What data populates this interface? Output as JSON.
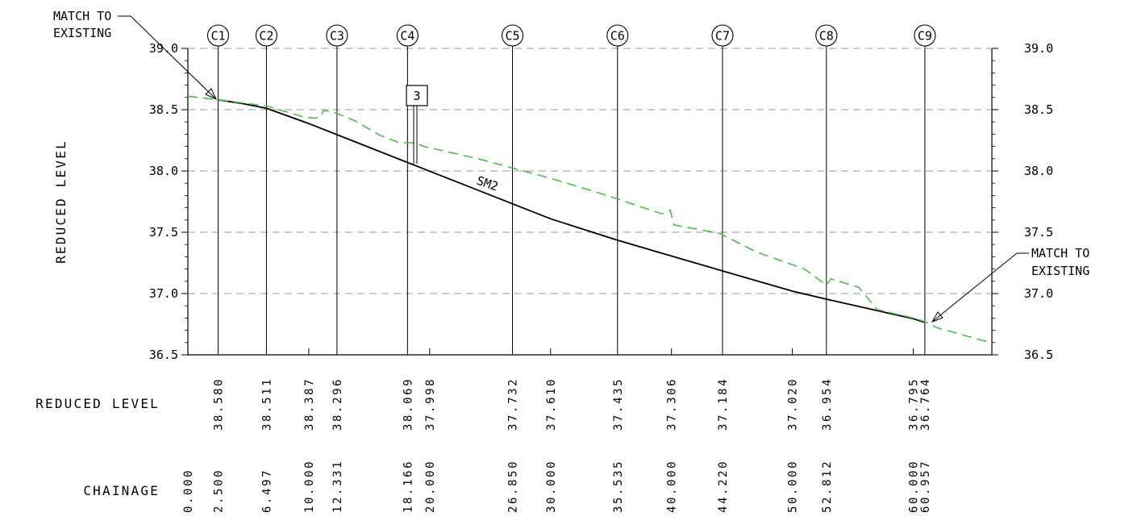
{
  "chart_data": {
    "type": "line",
    "ylabel": "REDUCED LEVEL",
    "ylim": [
      36.5,
      39.0
    ],
    "xlim": [
      0,
      66.5
    ],
    "y_ticks": [
      "36.5",
      "37.0",
      "37.5",
      "38.0",
      "38.5",
      "39.0"
    ],
    "grid": "horizontal dashed",
    "series": [
      {
        "name": "SM2",
        "color": "#000000",
        "style": "solid",
        "points": [
          [
            2.5,
            38.58
          ],
          [
            4.5,
            38.55
          ],
          [
            6.497,
            38.511
          ],
          [
            10.0,
            38.387
          ],
          [
            12.331,
            38.296
          ],
          [
            18.166,
            38.069
          ],
          [
            20.0,
            37.998
          ],
          [
            26.85,
            37.732
          ],
          [
            30.0,
            37.61
          ],
          [
            35.535,
            37.435
          ],
          [
            40.0,
            37.306
          ],
          [
            44.22,
            37.184
          ],
          [
            50.0,
            37.02
          ],
          [
            52.812,
            36.954
          ],
          [
            60.0,
            36.795
          ],
          [
            60.957,
            36.764
          ]
        ]
      },
      {
        "name": "",
        "color": "#4cbb4c",
        "style": "dashed",
        "points": [
          [
            0.0,
            38.61
          ],
          [
            2.5,
            38.58
          ],
          [
            6.5,
            38.53
          ],
          [
            9.6,
            38.44
          ],
          [
            10.5,
            38.43
          ],
          [
            11.0,
            38.44
          ],
          [
            11.2,
            38.49
          ],
          [
            11.8,
            38.49
          ],
          [
            13.8,
            38.41
          ],
          [
            15.9,
            38.29
          ],
          [
            17.5,
            38.23
          ],
          [
            18.8,
            38.23
          ],
          [
            19.5,
            38.2
          ],
          [
            24.0,
            38.1
          ],
          [
            30.0,
            37.94
          ],
          [
            35.0,
            37.79
          ],
          [
            39.2,
            37.65
          ],
          [
            39.9,
            37.68
          ],
          [
            40.2,
            37.56
          ],
          [
            44.0,
            37.49
          ],
          [
            47.0,
            37.34
          ],
          [
            51.0,
            37.2
          ],
          [
            52.8,
            37.07
          ],
          [
            53.2,
            37.12
          ],
          [
            55.5,
            37.05
          ],
          [
            57.0,
            36.87
          ],
          [
            60.0,
            36.8
          ],
          [
            61.0,
            36.77
          ],
          [
            62.0,
            36.72
          ],
          [
            66.0,
            36.61
          ],
          [
            66.5,
            36.59
          ]
        ]
      }
    ],
    "control_points": [
      {
        "label": "C1",
        "chainage": 2.5
      },
      {
        "label": "C2",
        "chainage": 6.497
      },
      {
        "label": "C3",
        "chainage": 12.331
      },
      {
        "label": "C4",
        "chainage": 18.166
      },
      {
        "label": "C5",
        "chainage": 26.85
      },
      {
        "label": "C6",
        "chainage": 35.535
      },
      {
        "label": "C7",
        "chainage": 44.22
      },
      {
        "label": "C8",
        "chainage": 52.812
      },
      {
        "label": "C9",
        "chainage": 60.957
      }
    ],
    "minor_stations": [
      10.0,
      20.0,
      30.0,
      40.0,
      50.0,
      60.0
    ],
    "table": {
      "reduced_level_title": "REDUCED LEVEL",
      "chainage_title": "CHAINAGE",
      "rows": [
        {
          "chainage": 0.0,
          "chainage_label": "0.000",
          "level_label": ""
        },
        {
          "chainage": 2.5,
          "chainage_label": "2.500",
          "level_label": "38.580"
        },
        {
          "chainage": 6.497,
          "chainage_label": "6.497",
          "level_label": "38.511"
        },
        {
          "chainage": 10.0,
          "chainage_label": "10.000",
          "level_label": "38.387"
        },
        {
          "chainage": 12.331,
          "chainage_label": "12.331",
          "level_label": "38.296"
        },
        {
          "chainage": 18.166,
          "chainage_label": "18.166",
          "level_label": "38.069"
        },
        {
          "chainage": 20.0,
          "chainage_label": "20.000",
          "level_label": "37.998"
        },
        {
          "chainage": 26.85,
          "chainage_label": "26.850",
          "level_label": "37.732"
        },
        {
          "chainage": 30.0,
          "chainage_label": "30.000",
          "level_label": "37.610"
        },
        {
          "chainage": 35.535,
          "chainage_label": "35.535",
          "level_label": "37.435"
        },
        {
          "chainage": 40.0,
          "chainage_label": "40.000",
          "level_label": "37.306"
        },
        {
          "chainage": 44.22,
          "chainage_label": "44.220",
          "level_label": "37.184"
        },
        {
          "chainage": 50.0,
          "chainage_label": "50.000",
          "level_label": "37.020"
        },
        {
          "chainage": 52.812,
          "chainage_label": "52.812",
          "level_label": "36.954"
        },
        {
          "chainage": 60.0,
          "chainage_label": "60.000",
          "level_label": "36.795"
        },
        {
          "chainage": 60.957,
          "chainage_label": "60.957",
          "level_label": "36.764"
        }
      ]
    },
    "annotations": {
      "match_left": [
        "MATCH TO",
        "EXISTING"
      ],
      "match_right": [
        "MATCH TO",
        "EXISTING"
      ],
      "sm_label": "SM2",
      "tag": "3",
      "tag_chainage": 18.166
    }
  }
}
